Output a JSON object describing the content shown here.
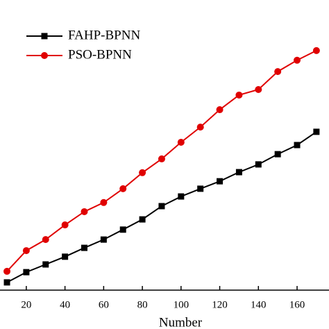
{
  "chart_data": {
    "type": "line",
    "xlabel": "Number",
    "x": [
      10,
      20,
      30,
      40,
      50,
      60,
      70,
      80,
      90,
      100,
      110,
      120,
      130,
      140,
      150,
      160,
      170
    ],
    "series": [
      {
        "name": "FAHP-BPNN",
        "color": "#000000",
        "marker": "square",
        "values": [
          2.8,
          6.5,
          9.3,
          12.1,
          15.3,
          18.3,
          21.9,
          25.6,
          30.4,
          33.9,
          36.7,
          39.4,
          42.7,
          45.5,
          49.2,
          52.5,
          57.3
        ]
      },
      {
        "name": "PSO-BPNN",
        "color": "#e00000",
        "marker": "circle",
        "values": [
          6.8,
          14.3,
          18.3,
          23.6,
          28.4,
          31.7,
          36.7,
          42.5,
          47.5,
          53.5,
          59.0,
          65.3,
          70.6,
          72.6,
          79.1,
          83.2,
          86.7
        ]
      }
    ],
    "xlim": [
      6.4,
      176.5
    ],
    "xticks": [
      20,
      40,
      60,
      80,
      100,
      120,
      140,
      160
    ],
    "ylim": [
      0,
      105
    ],
    "legend": "upper left"
  }
}
